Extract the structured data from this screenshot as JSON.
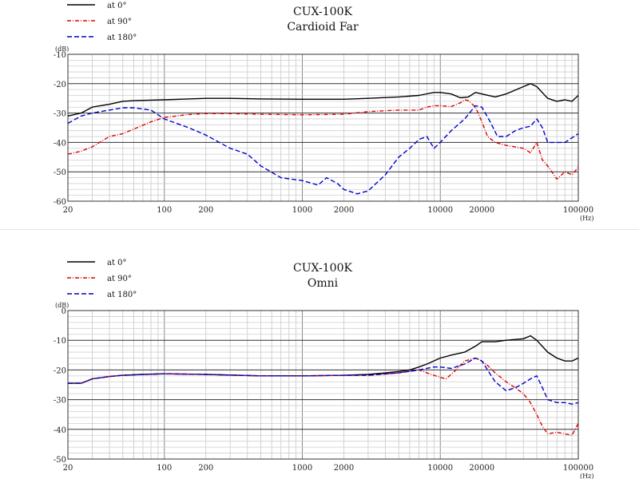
{
  "chart_data": [
    {
      "type": "line",
      "title": "CUX-100K",
      "subtitle": "Cardioid Far",
      "xlabel": "(Hz)",
      "ylabel": "(dB)",
      "x_scale": "log",
      "xlim": [
        20,
        100000
      ],
      "ylim": [
        -60,
        -10
      ],
      "xtick_labels": [
        "20",
        "100",
        "200",
        "1000",
        "2000",
        "10000",
        "20000",
        "100000"
      ],
      "ytick_labels": [
        "-10",
        "-20",
        "-30",
        "-40",
        "-50",
        "-60"
      ],
      "grid": true,
      "legend_position": "top-left",
      "series": [
        {
          "name": "at 0°",
          "color": "#000000",
          "style": "solid",
          "points": [
            [
              20,
              -31
            ],
            [
              25,
              -30
            ],
            [
              30,
              -28
            ],
            [
              40,
              -27
            ],
            [
              50,
              -26
            ],
            [
              60,
              -25.8
            ],
            [
              80,
              -25.6
            ],
            [
              100,
              -25.5
            ],
            [
              150,
              -25.2
            ],
            [
              200,
              -25
            ],
            [
              300,
              -25
            ],
            [
              500,
              -25.2
            ],
            [
              1000,
              -25.3
            ],
            [
              2000,
              -25.3
            ],
            [
              3000,
              -25
            ],
            [
              5000,
              -24.5
            ],
            [
              7000,
              -24
            ],
            [
              9000,
              -23
            ],
            [
              10000,
              -23
            ],
            [
              12000,
              -23.5
            ],
            [
              14000,
              -24.8
            ],
            [
              16000,
              -24.5
            ],
            [
              18000,
              -23
            ],
            [
              20000,
              -23.5
            ],
            [
              25000,
              -24.5
            ],
            [
              30000,
              -23.5
            ],
            [
              40000,
              -21
            ],
            [
              45000,
              -20
            ],
            [
              50000,
              -21
            ],
            [
              60000,
              -25
            ],
            [
              70000,
              -26
            ],
            [
              80000,
              -25.5
            ],
            [
              90000,
              -26
            ],
            [
              100000,
              -24
            ]
          ]
        },
        {
          "name": "at 90°",
          "color": "#dd0000",
          "style": "dash-dot",
          "points": [
            [
              20,
              -44
            ],
            [
              25,
              -43
            ],
            [
              30,
              -41.5
            ],
            [
              40,
              -38
            ],
            [
              50,
              -37
            ],
            [
              60,
              -35.5
            ],
            [
              80,
              -33
            ],
            [
              100,
              -31.5
            ],
            [
              150,
              -30.5
            ],
            [
              200,
              -30.2
            ],
            [
              300,
              -30.2
            ],
            [
              500,
              -30.4
            ],
            [
              1000,
              -30.6
            ],
            [
              2000,
              -30.4
            ],
            [
              3000,
              -29.5
            ],
            [
              5000,
              -29
            ],
            [
              7000,
              -29
            ],
            [
              8000,
              -28
            ],
            [
              9000,
              -27.5
            ],
            [
              10000,
              -27.5
            ],
            [
              12000,
              -27.8
            ],
            [
              14000,
              -26.5
            ],
            [
              15000,
              -25.5
            ],
            [
              16000,
              -25.8
            ],
            [
              18000,
              -28
            ],
            [
              20000,
              -33
            ],
            [
              22000,
              -38
            ],
            [
              25000,
              -40
            ],
            [
              30000,
              -41
            ],
            [
              40000,
              -42
            ],
            [
              45000,
              -43.5
            ],
            [
              50000,
              -40
            ],
            [
              55000,
              -46
            ],
            [
              60000,
              -48
            ],
            [
              70000,
              -52.5
            ],
            [
              80000,
              -50
            ],
            [
              90000,
              -51
            ],
            [
              100000,
              -48.5
            ]
          ]
        },
        {
          "name": "at 180°",
          "color": "#0000cc",
          "style": "dashed",
          "points": [
            [
              20,
              -33.5
            ],
            [
              25,
              -31
            ],
            [
              30,
              -30
            ],
            [
              40,
              -29
            ],
            [
              50,
              -28.2
            ],
            [
              60,
              -28.2
            ],
            [
              80,
              -29
            ],
            [
              100,
              -32
            ],
            [
              150,
              -35
            ],
            [
              200,
              -37.5
            ],
            [
              300,
              -42
            ],
            [
              400,
              -44
            ],
            [
              500,
              -48
            ],
            [
              700,
              -52
            ],
            [
              1000,
              -53
            ],
            [
              1300,
              -54.5
            ],
            [
              1500,
              -52
            ],
            [
              1800,
              -54
            ],
            [
              2000,
              -56
            ],
            [
              2500,
              -57.5
            ],
            [
              3000,
              -56.5
            ],
            [
              4000,
              -51
            ],
            [
              5000,
              -45
            ],
            [
              6000,
              -42
            ],
            [
              7000,
              -39
            ],
            [
              8000,
              -38
            ],
            [
              9000,
              -42
            ],
            [
              10000,
              -40
            ],
            [
              12000,
              -36
            ],
            [
              15000,
              -32
            ],
            [
              18000,
              -27.5
            ],
            [
              20000,
              -28
            ],
            [
              23000,
              -33
            ],
            [
              26000,
              -38
            ],
            [
              30000,
              -38
            ],
            [
              35000,
              -36
            ],
            [
              40000,
              -35
            ],
            [
              45000,
              -34.5
            ],
            [
              50000,
              -32
            ],
            [
              55000,
              -35
            ],
            [
              60000,
              -40
            ],
            [
              70000,
              -40
            ],
            [
              80000,
              -40
            ],
            [
              100000,
              -37
            ]
          ]
        }
      ]
    },
    {
      "type": "line",
      "title": "CUX-100K",
      "subtitle": "Omni",
      "xlabel": "(Hz)",
      "ylabel": "(dB)",
      "x_scale": "log",
      "xlim": [
        20,
        100000
      ],
      "ylim": [
        -50,
        0
      ],
      "xtick_labels": [
        "20",
        "100",
        "200",
        "1000",
        "2000",
        "10000",
        "20000",
        "100000"
      ],
      "ytick_labels": [
        "0",
        "-10",
        "-20",
        "-30",
        "-40",
        "-50"
      ],
      "grid": true,
      "legend_position": "top-left",
      "series": [
        {
          "name": "at 0°",
          "color": "#000000",
          "style": "solid",
          "points": [
            [
              20,
              -24.5
            ],
            [
              25,
              -24.5
            ],
            [
              30,
              -23
            ],
            [
              40,
              -22.2
            ],
            [
              50,
              -21.8
            ],
            [
              70,
              -21.5
            ],
            [
              100,
              -21.3
            ],
            [
              200,
              -21.5
            ],
            [
              500,
              -22
            ],
            [
              1000,
              -22
            ],
            [
              2000,
              -21.8
            ],
            [
              3000,
              -21.5
            ],
            [
              4000,
              -21
            ],
            [
              5000,
              -20.5
            ],
            [
              6000,
              -20
            ],
            [
              7000,
              -19
            ],
            [
              8000,
              -18
            ],
            [
              10000,
              -16
            ],
            [
              12000,
              -15
            ],
            [
              15000,
              -14
            ],
            [
              18000,
              -12
            ],
            [
              20000,
              -10.5
            ],
            [
              25000,
              -10.5
            ],
            [
              30000,
              -10
            ],
            [
              40000,
              -9.5
            ],
            [
              45000,
              -8.5
            ],
            [
              50000,
              -10
            ],
            [
              60000,
              -14
            ],
            [
              70000,
              -16
            ],
            [
              80000,
              -17
            ],
            [
              90000,
              -17
            ],
            [
              100000,
              -16
            ]
          ]
        },
        {
          "name": "at 90°",
          "color": "#dd0000",
          "style": "dash-dot",
          "points": [
            [
              20,
              -24.5
            ],
            [
              25,
              -24.5
            ],
            [
              30,
              -23
            ],
            [
              40,
              -22.2
            ],
            [
              50,
              -21.8
            ],
            [
              70,
              -21.5
            ],
            [
              100,
              -21.3
            ],
            [
              200,
              -21.5
            ],
            [
              500,
              -22
            ],
            [
              1000,
              -22
            ],
            [
              2000,
              -21.8
            ],
            [
              3000,
              -21.8
            ],
            [
              5000,
              -21
            ],
            [
              7000,
              -20
            ],
            [
              8000,
              -21
            ],
            [
              10000,
              -22.5
            ],
            [
              11000,
              -23
            ],
            [
              13000,
              -20
            ],
            [
              15000,
              -17
            ],
            [
              18000,
              -16
            ],
            [
              20000,
              -17
            ],
            [
              22000,
              -18.5
            ],
            [
              25000,
              -21
            ],
            [
              30000,
              -24
            ],
            [
              35000,
              -26
            ],
            [
              40000,
              -28
            ],
            [
              45000,
              -31
            ],
            [
              50000,
              -35
            ],
            [
              55000,
              -39
            ],
            [
              60000,
              -41.5
            ],
            [
              70000,
              -41
            ],
            [
              80000,
              -41.5
            ],
            [
              90000,
              -42
            ],
            [
              100000,
              -38
            ]
          ]
        },
        {
          "name": "at 180°",
          "color": "#0000cc",
          "style": "dashed",
          "points": [
            [
              20,
              -24.5
            ],
            [
              25,
              -24.5
            ],
            [
              30,
              -23
            ],
            [
              40,
              -22.2
            ],
            [
              50,
              -21.8
            ],
            [
              70,
              -21.5
            ],
            [
              100,
              -21.3
            ],
            [
              200,
              -21.5
            ],
            [
              500,
              -22
            ],
            [
              1000,
              -22
            ],
            [
              2000,
              -21.8
            ],
            [
              3000,
              -21.8
            ],
            [
              5000,
              -21
            ],
            [
              7000,
              -20
            ],
            [
              9000,
              -19
            ],
            [
              10000,
              -19
            ],
            [
              12000,
              -19.5
            ],
            [
              15000,
              -18
            ],
            [
              18000,
              -16
            ],
            [
              20000,
              -17
            ],
            [
              22000,
              -20
            ],
            [
              25000,
              -24
            ],
            [
              30000,
              -27
            ],
            [
              35000,
              -26
            ],
            [
              40000,
              -24.5
            ],
            [
              45000,
              -23
            ],
            [
              50000,
              -22
            ],
            [
              55000,
              -26
            ],
            [
              60000,
              -30
            ],
            [
              70000,
              -31
            ],
            [
              80000,
              -31
            ],
            [
              90000,
              -31.5
            ],
            [
              100000,
              -31
            ]
          ]
        }
      ]
    }
  ]
}
